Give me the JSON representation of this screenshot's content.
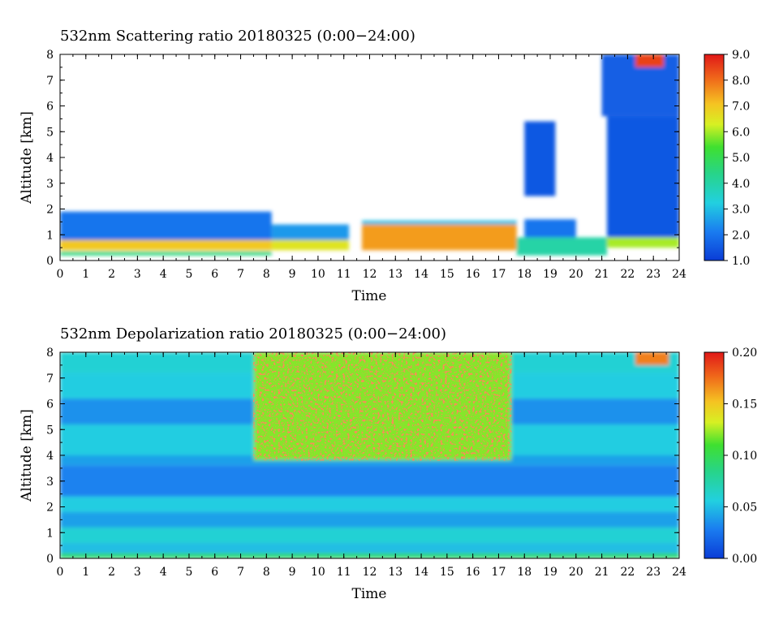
{
  "chart_data": [
    {
      "type": "heatmap",
      "title": "532nm Scattering ratio   20180325 (0:00−24:00)",
      "xlabel": "Time",
      "ylabel": "Altitude [km]",
      "xlim": [
        0,
        24
      ],
      "ylim": [
        0,
        8
      ],
      "x_ticks": [
        "0",
        "1",
        "2",
        "3",
        "4",
        "5",
        "6",
        "7",
        "8",
        "9",
        "10",
        "11",
        "12",
        "13",
        "14",
        "15",
        "16",
        "17",
        "18",
        "19",
        "20",
        "21",
        "22",
        "23",
        "24"
      ],
      "y_ticks": [
        "0",
        "1",
        "2",
        "3",
        "4",
        "5",
        "6",
        "7",
        "8"
      ],
      "colorbar": {
        "range": [
          1.0,
          9.0
        ],
        "ticks": [
          "1.0",
          "2.0",
          "3.0",
          "4.0",
          "5.0",
          "6.0",
          "7.0",
          "8.0",
          "9.0"
        ]
      },
      "regions": [
        {
          "t": [
            0,
            8.2
          ],
          "alt": [
            0.2,
            0.35
          ],
          "value": 4.5
        },
        {
          "t": [
            0,
            8.2
          ],
          "alt": [
            0.4,
            0.8
          ],
          "value": 7.0
        },
        {
          "t": [
            0,
            8.2
          ],
          "alt": [
            0.8,
            1.9
          ],
          "value": 2.0
        },
        {
          "t": [
            8.2,
            11.2
          ],
          "alt": [
            0.4,
            0.8
          ],
          "value": 6.5
        },
        {
          "t": [
            8.2,
            11.2
          ],
          "alt": [
            0.8,
            1.4
          ],
          "value": 2.5
        },
        {
          "t": [
            11.7,
            17.7
          ],
          "alt": [
            0.4,
            1.4
          ],
          "value": 7.5
        },
        {
          "t": [
            11.7,
            17.7
          ],
          "alt": [
            1.4,
            1.55
          ],
          "value": 3.0
        },
        {
          "t": [
            17.7,
            21.2
          ],
          "alt": [
            0.2,
            0.9
          ],
          "value": 4.0
        },
        {
          "t": [
            18,
            20
          ],
          "alt": [
            0.9,
            1.6
          ],
          "value": 2.0
        },
        {
          "t": [
            21.2,
            24
          ],
          "alt": [
            0.5,
            0.9
          ],
          "value": 6.0
        },
        {
          "t": [
            21.2,
            24
          ],
          "alt": [
            0.9,
            5.6
          ],
          "value": 1.5
        },
        {
          "t": [
            18,
            19.2
          ],
          "alt": [
            2.5,
            5.4
          ],
          "value": 1.5
        },
        {
          "t": [
            21,
            24
          ],
          "alt": [
            5.6,
            8.0
          ],
          "value": 1.6
        },
        {
          "t": [
            22.3,
            23.4
          ],
          "alt": [
            7.5,
            8.0
          ],
          "value": 8.5
        }
      ]
    },
    {
      "type": "heatmap",
      "title": "532nm Depolarization ratio   20180325 (0:00−24:00)",
      "xlabel": "Time",
      "ylabel": "Altitude [km]",
      "xlim": [
        0,
        24
      ],
      "ylim": [
        0,
        8
      ],
      "x_ticks": [
        "0",
        "1",
        "2",
        "3",
        "4",
        "5",
        "6",
        "7",
        "8",
        "9",
        "10",
        "11",
        "12",
        "13",
        "14",
        "15",
        "16",
        "17",
        "18",
        "19",
        "20",
        "21",
        "22",
        "23",
        "24"
      ],
      "y_ticks": [
        "0",
        "1",
        "2",
        "3",
        "4",
        "5",
        "6",
        "7",
        "8"
      ],
      "colorbar": {
        "range": [
          0.0,
          0.2
        ],
        "ticks": [
          "0.00",
          "0.05",
          "0.10",
          "0.15",
          "0.20"
        ]
      },
      "regions": [
        {
          "t": [
            0,
            24
          ],
          "alt": [
            0,
            0.2
          ],
          "value": 0.09
        },
        {
          "t": [
            0,
            24
          ],
          "alt": [
            0.2,
            0.6
          ],
          "value": 0.05
        },
        {
          "t": [
            0,
            24
          ],
          "alt": [
            0.6,
            1.2
          ],
          "value": 0.06
        },
        {
          "t": [
            0,
            24
          ],
          "alt": [
            1.2,
            1.8
          ],
          "value": 0.04
        },
        {
          "t": [
            0,
            24
          ],
          "alt": [
            1.8,
            2.4
          ],
          "value": 0.055
        },
        {
          "t": [
            0,
            24
          ],
          "alt": [
            2.4,
            3.6
          ],
          "value": 0.03
        },
        {
          "t": [
            0,
            24
          ],
          "alt": [
            3.6,
            4.0
          ],
          "value": 0.04
        },
        {
          "t": [
            0,
            24
          ],
          "alt": [
            4.0,
            5.2
          ],
          "value": 0.055
        },
        {
          "t": [
            0,
            24
          ],
          "alt": [
            5.2,
            6.2
          ],
          "value": 0.035
        },
        {
          "t": [
            0,
            24
          ],
          "alt": [
            6.2,
            7.2
          ],
          "value": 0.055
        },
        {
          "t": [
            0,
            24
          ],
          "alt": [
            7.2,
            8.0
          ],
          "value": 0.06
        },
        {
          "t": [
            7.5,
            17.5
          ],
          "alt": [
            3.8,
            8.0
          ],
          "value": 0.12
        },
        {
          "t": [
            22.3,
            23.6
          ],
          "alt": [
            7.5,
            8.0
          ],
          "value": 0.17
        }
      ]
    }
  ]
}
